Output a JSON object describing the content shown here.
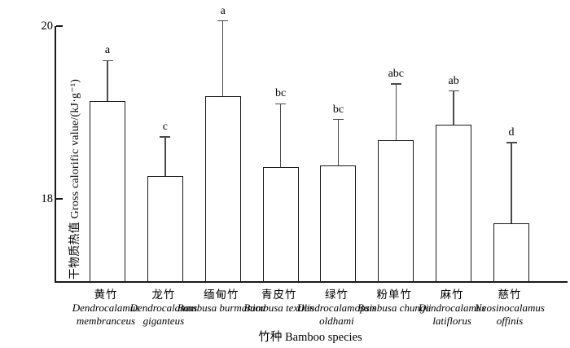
{
  "chart_data": {
    "type": "bar",
    "title": "",
    "ylabel": "干物质热值 Gross calorific value/(kJ·g⁻¹)",
    "xlabel": "竹种 Bamboo species",
    "ylim": [
      17.05,
      20.0
    ],
    "yticks": [
      {
        "value": 18,
        "label": "18"
      },
      {
        "value": 20,
        "label": "20"
      }
    ],
    "grid": false,
    "legend": false,
    "bar_fill": "#ffffff",
    "bar_border": "#1a1a1a",
    "categories": [
      {
        "cn": "黄竹",
        "latin": "Dendrocalamus membranceus"
      },
      {
        "cn": "龙竹",
        "latin": "Dendrocalamus giganteus"
      },
      {
        "cn": "缅甸竹",
        "latin": "Bambusa burmanica"
      },
      {
        "cn": "青皮竹",
        "latin": "Bambusa textilis"
      },
      {
        "cn": "绿竹",
        "latin": "Dendrocalamopsis oldhami"
      },
      {
        "cn": "粉单竹",
        "latin": "Bambusa chungii"
      },
      {
        "cn": "麻竹",
        "latin": "Dendrocalamus latiflorus"
      },
      {
        "cn": "慈竹",
        "latin": "Neosinocalamus offinis"
      }
    ],
    "values": [
      19.13,
      18.27,
      19.19,
      18.37,
      18.39,
      18.68,
      18.86,
      17.72
    ],
    "errors": [
      0.47,
      0.45,
      0.87,
      0.73,
      0.53,
      0.65,
      0.39,
      0.93
    ],
    "sig_letters": [
      "a",
      "c",
      "a",
      "bc",
      "bc",
      "abc",
      "ab",
      "d"
    ]
  }
}
